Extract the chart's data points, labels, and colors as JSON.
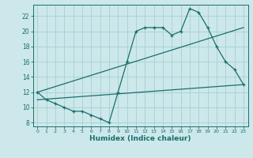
{
  "xlabel": "Humidex (Indice chaleur)",
  "bg_color": "#cce8ea",
  "grid_color": "#a8d0d2",
  "line_color": "#1a6e6e",
  "xlim": [
    -0.5,
    23.5
  ],
  "ylim": [
    7.5,
    23.5
  ],
  "yticks": [
    8,
    10,
    12,
    14,
    16,
    18,
    20,
    22
  ],
  "xticks": [
    0,
    1,
    2,
    3,
    4,
    5,
    6,
    7,
    8,
    9,
    10,
    11,
    12,
    13,
    14,
    15,
    16,
    17,
    18,
    19,
    20,
    21,
    22,
    23
  ],
  "curve_x": [
    0,
    1,
    2,
    3,
    4,
    5,
    6,
    7,
    8,
    9,
    10,
    11,
    12,
    13,
    14,
    15,
    16,
    17,
    18,
    19,
    20,
    21,
    22,
    23
  ],
  "curve_y": [
    12,
    11,
    10.5,
    10,
    9.5,
    9.5,
    9.0,
    8.5,
    8.0,
    12.0,
    16.0,
    20.0,
    20.5,
    20.5,
    20.5,
    19.5,
    20.0,
    23.0,
    22.5,
    20.5,
    18.0,
    16.0,
    15.0,
    13.0
  ],
  "line1_x": [
    0,
    23
  ],
  "line1_y": [
    12.0,
    20.5
  ],
  "line2_x": [
    0,
    23
  ],
  "line2_y": [
    11.0,
    13.0
  ]
}
